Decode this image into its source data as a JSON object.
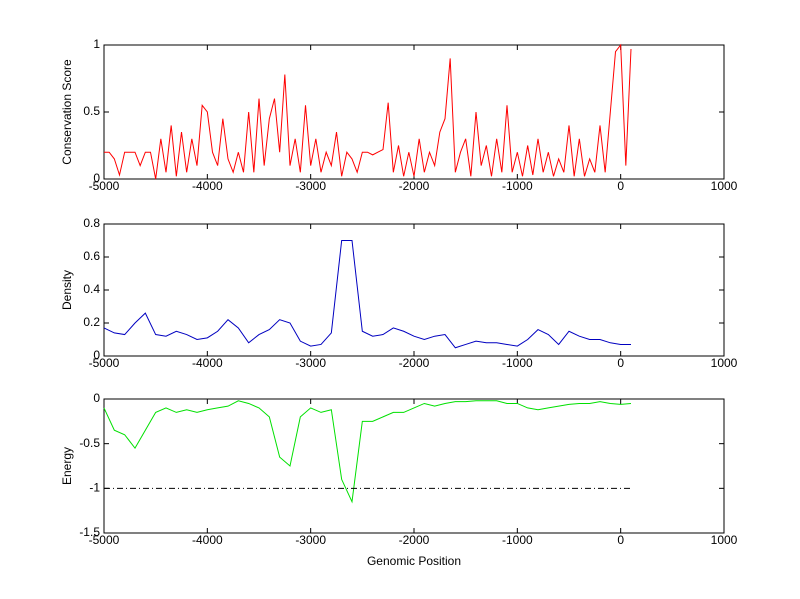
{
  "chart_data": [
    {
      "type": "line",
      "ylabel": "Conservation Score",
      "xlim": [
        -5000,
        1000
      ],
      "xticks": [
        -5000,
        -4000,
        -3000,
        -2000,
        -1000,
        0,
        1000
      ],
      "ylim": [
        0,
        1
      ],
      "yticks": [
        0,
        0.5,
        1
      ],
      "series": [
        {
          "color": "#ff0000",
          "x": [
            -5000,
            -4950,
            -4900,
            -4850,
            -4800,
            -4750,
            -4700,
            -4650,
            -4600,
            -4550,
            -4500,
            -4450,
            -4400,
            -4350,
            -4300,
            -4250,
            -4200,
            -4150,
            -4100,
            -4050,
            -4000,
            -3950,
            -3900,
            -3850,
            -3800,
            -3750,
            -3700,
            -3650,
            -3600,
            -3550,
            -3500,
            -3450,
            -3400,
            -3350,
            -3300,
            -3250,
            -3200,
            -3150,
            -3100,
            -3050,
            -3000,
            -2950,
            -2900,
            -2850,
            -2800,
            -2750,
            -2700,
            -2650,
            -2600,
            -2550,
            -2500,
            -2450,
            -2400,
            -2350,
            -2300,
            -2250,
            -2200,
            -2150,
            -2100,
            -2050,
            -2000,
            -1950,
            -1900,
            -1850,
            -1800,
            -1750,
            -1700,
            -1650,
            -1600,
            -1550,
            -1500,
            -1450,
            -1400,
            -1350,
            -1300,
            -1250,
            -1200,
            -1150,
            -1100,
            -1050,
            -1000,
            -950,
            -900,
            -850,
            -800,
            -750,
            -700,
            -650,
            -600,
            -550,
            -500,
            -450,
            -400,
            -350,
            -300,
            -250,
            -200,
            -150,
            -100,
            -50,
            0,
            50,
            100
          ],
          "values": [
            0.2,
            0.2,
            0.15,
            0.03,
            0.2,
            0.2,
            0.2,
            0.1,
            0.2,
            0.2,
            0.0,
            0.3,
            0.05,
            0.4,
            0.02,
            0.35,
            0.05,
            0.3,
            0.1,
            0.55,
            0.5,
            0.2,
            0.1,
            0.45,
            0.15,
            0.05,
            0.2,
            0.05,
            0.5,
            0.05,
            0.6,
            0.1,
            0.45,
            0.6,
            0.2,
            0.78,
            0.1,
            0.3,
            0.05,
            0.55,
            0.1,
            0.3,
            0.05,
            0.2,
            0.1,
            0.35,
            0.02,
            0.2,
            0.15,
            0.05,
            0.2,
            0.2,
            0.18,
            0.2,
            0.22,
            0.57,
            0.05,
            0.25,
            0.02,
            0.2,
            0.02,
            0.3,
            0.05,
            0.2,
            0.1,
            0.35,
            0.45,
            0.9,
            0.05,
            0.2,
            0.3,
            0.02,
            0.5,
            0.1,
            0.25,
            0.02,
            0.3,
            0.05,
            0.55,
            0.05,
            0.2,
            0.02,
            0.25,
            0.03,
            0.3,
            0.05,
            0.2,
            0.02,
            0.15,
            0.05,
            0.4,
            0.02,
            0.3,
            0.02,
            0.15,
            0.05,
            0.4,
            0.05,
            0.5,
            0.95,
            1.0,
            0.1,
            0.97
          ]
        }
      ]
    },
    {
      "type": "line",
      "ylabel": "Density",
      "xlim": [
        -5000,
        1000
      ],
      "xticks": [
        -5000,
        -4000,
        -3000,
        -2000,
        -1000,
        0,
        1000
      ],
      "ylim": [
        0,
        0.8
      ],
      "yticks": [
        0,
        0.2,
        0.4,
        0.6,
        0.8
      ],
      "series": [
        {
          "color": "#0000c0",
          "x": [
            -5000,
            -4900,
            -4800,
            -4700,
            -4600,
            -4500,
            -4400,
            -4300,
            -4200,
            -4100,
            -4000,
            -3900,
            -3800,
            -3700,
            -3600,
            -3500,
            -3400,
            -3300,
            -3200,
            -3100,
            -3000,
            -2900,
            -2800,
            -2700,
            -2600,
            -2500,
            -2400,
            -2300,
            -2200,
            -2100,
            -2000,
            -1900,
            -1800,
            -1700,
            -1600,
            -1500,
            -1400,
            -1300,
            -1200,
            -1100,
            -1000,
            -900,
            -800,
            -700,
            -600,
            -500,
            -400,
            -300,
            -200,
            -100,
            0,
            100
          ],
          "values": [
            0.17,
            0.14,
            0.13,
            0.2,
            0.26,
            0.13,
            0.12,
            0.15,
            0.13,
            0.1,
            0.11,
            0.15,
            0.22,
            0.17,
            0.08,
            0.13,
            0.16,
            0.22,
            0.2,
            0.09,
            0.06,
            0.07,
            0.14,
            0.7,
            0.7,
            0.15,
            0.12,
            0.13,
            0.17,
            0.15,
            0.12,
            0.1,
            0.12,
            0.13,
            0.05,
            0.07,
            0.09,
            0.08,
            0.08,
            0.07,
            0.06,
            0.1,
            0.16,
            0.13,
            0.07,
            0.15,
            0.12,
            0.1,
            0.1,
            0.08,
            0.07,
            0.07
          ]
        }
      ]
    },
    {
      "type": "line",
      "ylabel": "Energy",
      "xlabel": "Genomic Position",
      "xlim": [
        -5000,
        1000
      ],
      "xticks": [
        -5000,
        -4000,
        -3000,
        -2000,
        -1000,
        0,
        1000
      ],
      "ylim": [
        -1.5,
        0
      ],
      "yticks": [
        -1.5,
        -1,
        -0.5,
        0
      ],
      "series": [
        {
          "color": "#00e000",
          "x": [
            -5000,
            -4900,
            -4800,
            -4700,
            -4600,
            -4500,
            -4400,
            -4300,
            -4200,
            -4100,
            -4000,
            -3900,
            -3800,
            -3700,
            -3600,
            -3500,
            -3400,
            -3300,
            -3200,
            -3100,
            -3000,
            -2900,
            -2800,
            -2700,
            -2600,
            -2500,
            -2400,
            -2300,
            -2200,
            -2100,
            -2000,
            -1900,
            -1800,
            -1700,
            -1600,
            -1500,
            -1400,
            -1300,
            -1200,
            -1100,
            -1000,
            -900,
            -800,
            -700,
            -600,
            -500,
            -400,
            -300,
            -200,
            -100,
            0,
            100
          ],
          "values": [
            -0.1,
            -0.35,
            -0.4,
            -0.55,
            -0.35,
            -0.15,
            -0.1,
            -0.15,
            -0.12,
            -0.15,
            -0.12,
            -0.1,
            -0.08,
            -0.02,
            -0.05,
            -0.1,
            -0.2,
            -0.65,
            -0.75,
            -0.2,
            -0.1,
            -0.15,
            -0.12,
            -0.9,
            -1.15,
            -0.25,
            -0.25,
            -0.2,
            -0.15,
            -0.15,
            -0.1,
            -0.05,
            -0.08,
            -0.05,
            -0.03,
            -0.03,
            -0.02,
            -0.02,
            -0.02,
            -0.05,
            -0.05,
            -0.1,
            -0.12,
            -0.1,
            -0.08,
            -0.06,
            -0.05,
            -0.05,
            -0.03,
            -0.05,
            -0.06,
            -0.05
          ]
        },
        {
          "color": "#000000",
          "dash": "dashdot",
          "x": [
            -5000,
            100
          ],
          "values": [
            -1,
            -1
          ]
        }
      ]
    }
  ]
}
